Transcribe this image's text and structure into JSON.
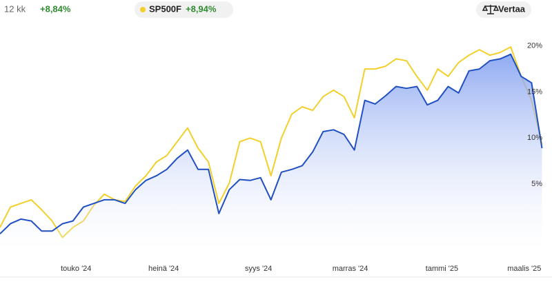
{
  "header": {
    "period": "12 kk",
    "change": "+8,84%",
    "compare_button": "Vertaa"
  },
  "chart_data": {
    "type": "line",
    "x": [
      0,
      1,
      2,
      3,
      4,
      5,
      6,
      7,
      8,
      9,
      10,
      11,
      12,
      13,
      14,
      15,
      16,
      17,
      18,
      19,
      20,
      21,
      22,
      23,
      24,
      25,
      26,
      27,
      28,
      29,
      30,
      31,
      32,
      33,
      34,
      35,
      36,
      37,
      38,
      39,
      40,
      41,
      42,
      43,
      44,
      45,
      46,
      47,
      48,
      49,
      50,
      51,
      52
    ],
    "series": [
      {
        "color": "#1f4fc1",
        "area": true,
        "values": [
          -0.4,
          0.7,
          1.2,
          1.0,
          -0.1,
          -0.1,
          0.7,
          1.0,
          2.5,
          2.9,
          3.3,
          3.3,
          2.9,
          4.4,
          5.4,
          5.9,
          6.6,
          7.8,
          8.7,
          6.6,
          6.6,
          1.8,
          4.4,
          5.5,
          5.4,
          5.7,
          3.3,
          6.3,
          6.6,
          7.0,
          8.5,
          10.7,
          10.9,
          10.4,
          8.7,
          14.1,
          13.7,
          14.6,
          15.6,
          15.4,
          15.6,
          13.6,
          14.1,
          15.6,
          14.9,
          17.3,
          17.5,
          18.4,
          18.6,
          19.1,
          16.7,
          16.0,
          8.9
        ]
      },
      {
        "name": "SP500F",
        "change": "+8,94%",
        "color": "#f2cf2a",
        "values": [
          0.3,
          2.5,
          2.9,
          3.3,
          2.2,
          1.0,
          -0.8,
          0.3,
          1.0,
          2.7,
          3.9,
          3.3,
          3.1,
          4.8,
          5.9,
          7.4,
          8.1,
          9.6,
          11.1,
          8.9,
          7.4,
          2.9,
          5.1,
          9.6,
          10.0,
          9.6,
          5.9,
          10.0,
          12.6,
          13.4,
          13.0,
          14.5,
          15.2,
          14.5,
          12.2,
          17.5,
          17.5,
          17.8,
          18.6,
          18.4,
          16.7,
          15.2,
          17.5,
          16.7,
          18.2,
          19.0,
          19.6,
          19.0,
          19.3,
          19.9,
          16.7,
          14.1,
          9.3
        ]
      }
    ],
    "xlim": [
      0,
      52.3
    ],
    "xticks": [
      {
        "value": 7.3,
        "label": "touko '24"
      },
      {
        "value": 15.7,
        "label": "heinä '24"
      },
      {
        "value": 24.8,
        "label": "syys '24"
      },
      {
        "value": 33.6,
        "label": "marras '24"
      },
      {
        "value": 42.4,
        "label": "tammi '25"
      },
      {
        "value": 50.3,
        "label": "maalis '25"
      }
    ],
    "ylim": [
      -2.1,
      22
    ],
    "yticks": [
      {
        "value": 5,
        "label": "5%"
      },
      {
        "value": 10,
        "label": "10%"
      },
      {
        "value": 15,
        "label": "15%"
      },
      {
        "value": 20,
        "label": "20%"
      }
    ]
  }
}
